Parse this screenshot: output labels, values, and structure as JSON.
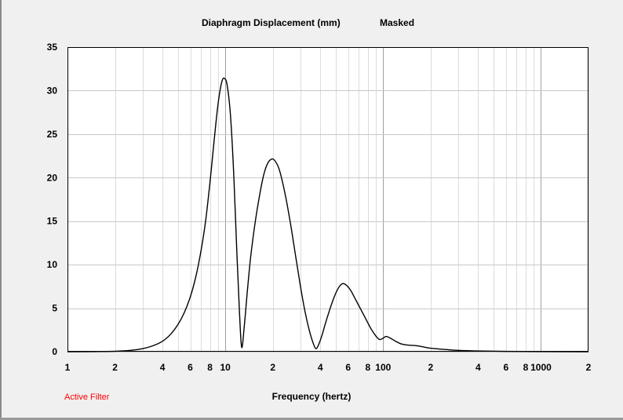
{
  "chart_data": {
    "type": "line",
    "title": "Diaphragm Displacement (mm)",
    "title_note": "Masked",
    "xlabel": "Frequency (hertz)",
    "ylabel": "",
    "xscale": "log",
    "xlim": [
      1,
      2000
    ],
    "ylim": [
      0,
      35
    ],
    "yticks": [
      0,
      5,
      10,
      15,
      20,
      25,
      30,
      35
    ],
    "xtick_labels": [
      {
        "v": 1,
        "t": "1"
      },
      {
        "v": 2,
        "t": "2"
      },
      {
        "v": 4,
        "t": "4"
      },
      {
        "v": 6,
        "t": "6"
      },
      {
        "v": 8,
        "t": "8"
      },
      {
        "v": 10,
        "t": "10"
      },
      {
        "v": 20,
        "t": "2"
      },
      {
        "v": 40,
        "t": "4"
      },
      {
        "v": 60,
        "t": "6"
      },
      {
        "v": 80,
        "t": "8"
      },
      {
        "v": 100,
        "t": "100"
      },
      {
        "v": 200,
        "t": "2"
      },
      {
        "v": 400,
        "t": "4"
      },
      {
        "v": 600,
        "t": "6"
      },
      {
        "v": 800,
        "t": "8"
      },
      {
        "v": 1000,
        "t": "1000"
      },
      {
        "v": 2000,
        "t": "2"
      }
    ],
    "grid": true,
    "series": [
      {
        "color": "#000000",
        "points": [
          [
            1,
            0.0
          ],
          [
            1.5,
            0.02
          ],
          [
            2,
            0.05
          ],
          [
            2.5,
            0.15
          ],
          [
            3,
            0.35
          ],
          [
            3.5,
            0.7
          ],
          [
            4,
            1.2
          ],
          [
            4.5,
            2.0
          ],
          [
            5,
            3.1
          ],
          [
            5.5,
            4.5
          ],
          [
            6,
            6.3
          ],
          [
            6.5,
            8.6
          ],
          [
            7,
            11.5
          ],
          [
            7.5,
            15.0
          ],
          [
            8,
            19.5
          ],
          [
            8.5,
            24.3
          ],
          [
            9,
            28.5
          ],
          [
            9.5,
            31.0
          ],
          [
            9.9,
            31.4
          ],
          [
            10.3,
            30.5
          ],
          [
            10.8,
            27.0
          ],
          [
            11.3,
            20.5
          ],
          [
            11.8,
            12.0
          ],
          [
            12.3,
            4.5
          ],
          [
            12.7,
            0.5
          ],
          [
            13.2,
            3.0
          ],
          [
            13.8,
            7.0
          ],
          [
            14.5,
            11.0
          ],
          [
            15.5,
            15.0
          ],
          [
            16.5,
            18.0
          ],
          [
            17.5,
            20.3
          ],
          [
            18.5,
            21.6
          ],
          [
            19.5,
            22.1
          ],
          [
            20.5,
            22.0
          ],
          [
            22,
            20.9
          ],
          [
            24,
            18.0
          ],
          [
            26,
            14.5
          ],
          [
            28,
            10.8
          ],
          [
            30,
            7.4
          ],
          [
            32,
            4.6
          ],
          [
            34,
            2.5
          ],
          [
            36,
            1.0
          ],
          [
            37.5,
            0.35
          ],
          [
            39,
            0.8
          ],
          [
            41,
            1.9
          ],
          [
            43,
            3.2
          ],
          [
            46,
            4.9
          ],
          [
            49,
            6.3
          ],
          [
            52,
            7.3
          ],
          [
            55,
            7.8
          ],
          [
            58,
            7.7
          ],
          [
            62,
            7.1
          ],
          [
            66,
            6.2
          ],
          [
            72,
            4.9
          ],
          [
            78,
            3.7
          ],
          [
            84,
            2.6
          ],
          [
            90,
            1.8
          ],
          [
            95,
            1.4
          ],
          [
            100,
            1.55
          ],
          [
            104,
            1.75
          ],
          [
            110,
            1.6
          ],
          [
            120,
            1.2
          ],
          [
            130,
            0.9
          ],
          [
            145,
            0.75
          ],
          [
            160,
            0.7
          ],
          [
            180,
            0.55
          ],
          [
            200,
            0.4
          ],
          [
            250,
            0.25
          ],
          [
            300,
            0.15
          ],
          [
            400,
            0.08
          ],
          [
            600,
            0.04
          ],
          [
            1000,
            0.02
          ],
          [
            2000,
            0.0
          ]
        ]
      }
    ]
  },
  "status": {
    "active_filter": "Active Filter"
  }
}
